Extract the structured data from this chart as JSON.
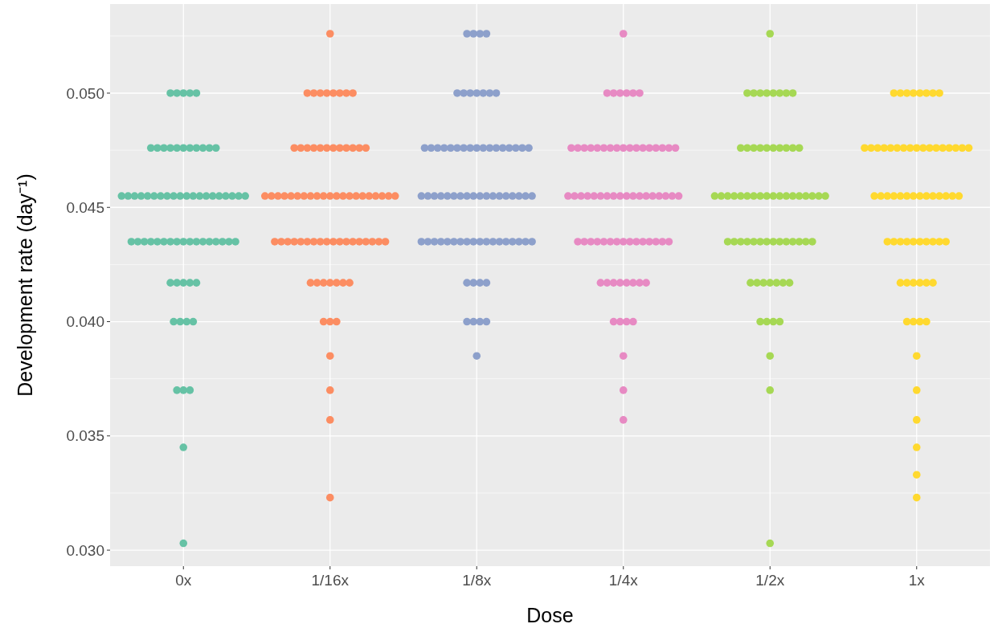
{
  "chart_data": {
    "type": "scatter",
    "xlabel": "Dose",
    "ylabel": "Development rate (day⁻¹)",
    "categories": [
      "0x",
      "1/16x",
      "1/8x",
      "1/4x",
      "1/2x",
      "1x"
    ],
    "ylim": [
      0.0293,
      0.0539
    ],
    "yticks": [
      {
        "value": 0.03,
        "label": "0.030"
      },
      {
        "value": 0.035,
        "label": "0.035"
      },
      {
        "value": 0.04,
        "label": "0.040"
      },
      {
        "value": 0.045,
        "label": "0.045"
      },
      {
        "value": 0.05,
        "label": "0.050"
      }
    ],
    "grid": true,
    "marker": "circle",
    "series": [
      {
        "color": "#66c2a5",
        "x": [
          "0x",
          "0x",
          "0x",
          "0x",
          "0x",
          "0x",
          "0x",
          "0x",
          "0x",
          "0x",
          "0x",
          "0x",
          "0x",
          "0x",
          "0x",
          "0x",
          "0x",
          "0x",
          "0x",
          "0x",
          "0x",
          "0x",
          "0x",
          "0x",
          "0x",
          "0x",
          "0x",
          "0x",
          "0x",
          "0x",
          "0x",
          "0x",
          "0x",
          "0x",
          "0x",
          "0x",
          "0x",
          "0x",
          "0x",
          "0x",
          "0x",
          "0x",
          "0x",
          "0x",
          "0x",
          "0x",
          "0x",
          "0x",
          "0x",
          "0x",
          "0x",
          "0x",
          "0x",
          "0x",
          "0x",
          "0x",
          "0x",
          "0x",
          "0x",
          "0x",
          "0x",
          "0x",
          "0x",
          "0x",
          "0x",
          "0x",
          "0x"
        ],
        "values": [
          0.05,
          0.05,
          0.05,
          0.05,
          0.05,
          0.0476,
          0.0476,
          0.0476,
          0.0476,
          0.0476,
          0.0476,
          0.0476,
          0.0476,
          0.0476,
          0.0476,
          0.0476,
          0.0455,
          0.0455,
          0.0455,
          0.0455,
          0.0455,
          0.0455,
          0.0455,
          0.0455,
          0.0455,
          0.0455,
          0.0455,
          0.0455,
          0.0455,
          0.0455,
          0.0455,
          0.0455,
          0.0455,
          0.0455,
          0.0455,
          0.0455,
          0.0435,
          0.0435,
          0.0435,
          0.0435,
          0.0435,
          0.0435,
          0.0435,
          0.0435,
          0.0435,
          0.0435,
          0.0435,
          0.0435,
          0.0435,
          0.0435,
          0.0435,
          0.0435,
          0.0435,
          0.0417,
          0.0417,
          0.0417,
          0.0417,
          0.0417,
          0.04,
          0.04,
          0.04,
          0.04,
          0.037,
          0.037,
          0.037,
          0.0345,
          0.0303
        ]
      },
      {
        "color": "#fc8d62",
        "x": [
          "1/16x",
          "1/16x",
          "1/16x",
          "1/16x",
          "1/16x",
          "1/16x",
          "1/16x",
          "1/16x",
          "1/16x",
          "1/16x",
          "1/16x",
          "1/16x",
          "1/16x",
          "1/16x",
          "1/16x",
          "1/16x",
          "1/16x",
          "1/16x",
          "1/16x",
          "1/16x",
          "1/16x",
          "1/16x",
          "1/16x",
          "1/16x",
          "1/16x",
          "1/16x",
          "1/16x",
          "1/16x",
          "1/16x",
          "1/16x",
          "1/16x",
          "1/16x",
          "1/16x",
          "1/16x",
          "1/16x",
          "1/16x",
          "1/16x",
          "1/16x",
          "1/16x",
          "1/16x",
          "1/16x",
          "1/16x",
          "1/16x",
          "1/16x",
          "1/16x",
          "1/16x",
          "1/16x",
          "1/16x",
          "1/16x",
          "1/16x",
          "1/16x",
          "1/16x",
          "1/16x",
          "1/16x",
          "1/16x",
          "1/16x",
          "1/16x",
          "1/16x",
          "1/16x",
          "1/16x",
          "1/16x",
          "1/16x",
          "1/16x",
          "1/16x",
          "1/16x",
          "1/16x",
          "1/16x",
          "1/16x",
          "1/16x",
          "1/16x",
          "1/16x",
          "1/16x",
          "1/16x",
          "1/16x"
        ],
        "values": [
          0.0526,
          0.05,
          0.05,
          0.05,
          0.05,
          0.05,
          0.05,
          0.05,
          0.05,
          0.0476,
          0.0476,
          0.0476,
          0.0476,
          0.0476,
          0.0476,
          0.0476,
          0.0476,
          0.0476,
          0.0476,
          0.0476,
          0.0476,
          0.0455,
          0.0455,
          0.0455,
          0.0455,
          0.0455,
          0.0455,
          0.0455,
          0.0455,
          0.0455,
          0.0455,
          0.0455,
          0.0455,
          0.0455,
          0.0455,
          0.0455,
          0.0455,
          0.0455,
          0.0455,
          0.0455,
          0.0455,
          0.0455,
          0.0435,
          0.0435,
          0.0435,
          0.0435,
          0.0435,
          0.0435,
          0.0435,
          0.0435,
          0.0435,
          0.0435,
          0.0435,
          0.0435,
          0.0435,
          0.0435,
          0.0435,
          0.0435,
          0.0435,
          0.0435,
          0.0417,
          0.0417,
          0.0417,
          0.0417,
          0.0417,
          0.0417,
          0.0417,
          0.04,
          0.04,
          0.04,
          0.0385,
          0.037,
          0.0357,
          0.0323
        ]
      },
      {
        "color": "#8da0cb",
        "x": [
          "1/8x",
          "1/8x",
          "1/8x",
          "1/8x",
          "1/8x",
          "1/8x",
          "1/8x",
          "1/8x",
          "1/8x",
          "1/8x",
          "1/8x",
          "1/8x",
          "1/8x",
          "1/8x",
          "1/8x",
          "1/8x",
          "1/8x",
          "1/8x",
          "1/8x",
          "1/8x",
          "1/8x",
          "1/8x",
          "1/8x",
          "1/8x",
          "1/8x",
          "1/8x",
          "1/8x",
          "1/8x",
          "1/8x",
          "1/8x",
          "1/8x",
          "1/8x",
          "1/8x",
          "1/8x",
          "1/8x",
          "1/8x",
          "1/8x",
          "1/8x",
          "1/8x",
          "1/8x",
          "1/8x",
          "1/8x",
          "1/8x",
          "1/8x",
          "1/8x",
          "1/8x",
          "1/8x",
          "1/8x",
          "1/8x",
          "1/8x",
          "1/8x",
          "1/8x",
          "1/8x",
          "1/8x",
          "1/8x",
          "1/8x",
          "1/8x",
          "1/8x",
          "1/8x",
          "1/8x",
          "1/8x",
          "1/8x",
          "1/8x",
          "1/8x",
          "1/8x",
          "1/8x",
          "1/8x",
          "1/8x",
          "1/8x",
          "1/8x",
          "1/8x",
          "1/8x",
          "1/8x"
        ],
        "values": [
          0.0526,
          0.0526,
          0.0526,
          0.0526,
          0.05,
          0.05,
          0.05,
          0.05,
          0.05,
          0.05,
          0.05,
          0.0476,
          0.0476,
          0.0476,
          0.0476,
          0.0476,
          0.0476,
          0.0476,
          0.0476,
          0.0476,
          0.0476,
          0.0476,
          0.0476,
          0.0476,
          0.0476,
          0.0476,
          0.0476,
          0.0476,
          0.0455,
          0.0455,
          0.0455,
          0.0455,
          0.0455,
          0.0455,
          0.0455,
          0.0455,
          0.0455,
          0.0455,
          0.0455,
          0.0455,
          0.0455,
          0.0455,
          0.0455,
          0.0455,
          0.0455,
          0.0455,
          0.0435,
          0.0435,
          0.0435,
          0.0435,
          0.0435,
          0.0435,
          0.0435,
          0.0435,
          0.0435,
          0.0435,
          0.0435,
          0.0435,
          0.0435,
          0.0435,
          0.0435,
          0.0435,
          0.0435,
          0.0435,
          0.0417,
          0.0417,
          0.0417,
          0.0417,
          0.04,
          0.04,
          0.04,
          0.04,
          0.0385
        ]
      },
      {
        "color": "#e78ac3",
        "x": [
          "1/4x",
          "1/4x",
          "1/4x",
          "1/4x",
          "1/4x",
          "1/4x",
          "1/4x",
          "1/4x",
          "1/4x",
          "1/4x",
          "1/4x",
          "1/4x",
          "1/4x",
          "1/4x",
          "1/4x",
          "1/4x",
          "1/4x",
          "1/4x",
          "1/4x",
          "1/4x",
          "1/4x",
          "1/4x",
          "1/4x",
          "1/4x",
          "1/4x",
          "1/4x",
          "1/4x",
          "1/4x",
          "1/4x",
          "1/4x",
          "1/4x",
          "1/4x",
          "1/4x",
          "1/4x",
          "1/4x",
          "1/4x",
          "1/4x",
          "1/4x",
          "1/4x",
          "1/4x",
          "1/4x",
          "1/4x",
          "1/4x",
          "1/4x",
          "1/4x",
          "1/4x",
          "1/4x",
          "1/4x",
          "1/4x",
          "1/4x",
          "1/4x",
          "1/4x",
          "1/4x",
          "1/4x",
          "1/4x",
          "1/4x",
          "1/4x",
          "1/4x",
          "1/4x",
          "1/4x",
          "1/4x",
          "1/4x",
          "1/4x",
          "1/4x",
          "1/4x",
          "1/4x",
          "1/4x",
          "1/4x",
          "1/4x",
          "1/4x",
          "1/4x",
          "1/4x"
        ],
        "values": [
          0.0526,
          0.05,
          0.05,
          0.05,
          0.05,
          0.05,
          0.05,
          0.0476,
          0.0476,
          0.0476,
          0.0476,
          0.0476,
          0.0476,
          0.0476,
          0.0476,
          0.0476,
          0.0476,
          0.0476,
          0.0476,
          0.0476,
          0.0476,
          0.0476,
          0.0476,
          0.0476,
          0.0455,
          0.0455,
          0.0455,
          0.0455,
          0.0455,
          0.0455,
          0.0455,
          0.0455,
          0.0455,
          0.0455,
          0.0455,
          0.0455,
          0.0455,
          0.0455,
          0.0455,
          0.0455,
          0.0455,
          0.0455,
          0.0435,
          0.0435,
          0.0435,
          0.0435,
          0.0435,
          0.0435,
          0.0435,
          0.0435,
          0.0435,
          0.0435,
          0.0435,
          0.0435,
          0.0435,
          0.0435,
          0.0435,
          0.0417,
          0.0417,
          0.0417,
          0.0417,
          0.0417,
          0.0417,
          0.0417,
          0.0417,
          0.04,
          0.04,
          0.04,
          0.04,
          0.0385,
          0.037,
          0.0357
        ]
      },
      {
        "color": "#a6d854",
        "x": [
          "1/2x",
          "1/2x",
          "1/2x",
          "1/2x",
          "1/2x",
          "1/2x",
          "1/2x",
          "1/2x",
          "1/2x",
          "1/2x",
          "1/2x",
          "1/2x",
          "1/2x",
          "1/2x",
          "1/2x",
          "1/2x",
          "1/2x",
          "1/2x",
          "1/2x",
          "1/2x",
          "1/2x",
          "1/2x",
          "1/2x",
          "1/2x",
          "1/2x",
          "1/2x",
          "1/2x",
          "1/2x",
          "1/2x",
          "1/2x",
          "1/2x",
          "1/2x",
          "1/2x",
          "1/2x",
          "1/2x",
          "1/2x",
          "1/2x",
          "1/2x",
          "1/2x",
          "1/2x",
          "1/2x",
          "1/2x",
          "1/2x",
          "1/2x",
          "1/2x",
          "1/2x",
          "1/2x",
          "1/2x",
          "1/2x",
          "1/2x",
          "1/2x",
          "1/2x",
          "1/2x",
          "1/2x",
          "1/2x",
          "1/2x",
          "1/2x",
          "1/2x",
          "1/2x",
          "1/2x",
          "1/2x",
          "1/2x",
          "1/2x",
          "1/2x",
          "1/2x"
        ],
        "values": [
          0.0526,
          0.05,
          0.05,
          0.05,
          0.05,
          0.05,
          0.05,
          0.05,
          0.05,
          0.0476,
          0.0476,
          0.0476,
          0.0476,
          0.0476,
          0.0476,
          0.0476,
          0.0476,
          0.0476,
          0.0476,
          0.0455,
          0.0455,
          0.0455,
          0.0455,
          0.0455,
          0.0455,
          0.0455,
          0.0455,
          0.0455,
          0.0455,
          0.0455,
          0.0455,
          0.0455,
          0.0455,
          0.0455,
          0.0455,
          0.0455,
          0.0455,
          0.0435,
          0.0435,
          0.0435,
          0.0435,
          0.0435,
          0.0435,
          0.0435,
          0.0435,
          0.0435,
          0.0435,
          0.0435,
          0.0435,
          0.0435,
          0.0435,
          0.0417,
          0.0417,
          0.0417,
          0.0417,
          0.0417,
          0.0417,
          0.0417,
          0.04,
          0.04,
          0.04,
          0.04,
          0.0385,
          0.037,
          0.0303
        ]
      },
      {
        "color": "#ffd92f",
        "x": [
          "1x",
          "1x",
          "1x",
          "1x",
          "1x",
          "1x",
          "1x",
          "1x",
          "1x",
          "1x",
          "1x",
          "1x",
          "1x",
          "1x",
          "1x",
          "1x",
          "1x",
          "1x",
          "1x",
          "1x",
          "1x",
          "1x",
          "1x",
          "1x",
          "1x",
          "1x",
          "1x",
          "1x",
          "1x",
          "1x",
          "1x",
          "1x",
          "1x",
          "1x",
          "1x",
          "1x",
          "1x",
          "1x",
          "1x",
          "1x",
          "1x",
          "1x",
          "1x",
          "1x",
          "1x",
          "1x",
          "1x",
          "1x",
          "1x",
          "1x",
          "1x",
          "1x",
          "1x",
          "1x",
          "1x",
          "1x",
          "1x",
          "1x",
          "1x",
          "1x",
          "1x",
          "1x",
          "1x",
          "1x",
          "1x"
        ],
        "values": [
          0.05,
          0.05,
          0.05,
          0.05,
          0.05,
          0.05,
          0.05,
          0.05,
          0.0476,
          0.0476,
          0.0476,
          0.0476,
          0.0476,
          0.0476,
          0.0476,
          0.0476,
          0.0476,
          0.0476,
          0.0476,
          0.0476,
          0.0476,
          0.0476,
          0.0476,
          0.0476,
          0.0476,
          0.0455,
          0.0455,
          0.0455,
          0.0455,
          0.0455,
          0.0455,
          0.0455,
          0.0455,
          0.0455,
          0.0455,
          0.0455,
          0.0455,
          0.0455,
          0.0455,
          0.0435,
          0.0435,
          0.0435,
          0.0435,
          0.0435,
          0.0435,
          0.0435,
          0.0435,
          0.0435,
          0.0435,
          0.0417,
          0.0417,
          0.0417,
          0.0417,
          0.0417,
          0.0417,
          0.04,
          0.04,
          0.04,
          0.04,
          0.0385,
          0.037,
          0.0357,
          0.0345,
          0.0333,
          0.0323
        ]
      }
    ]
  }
}
